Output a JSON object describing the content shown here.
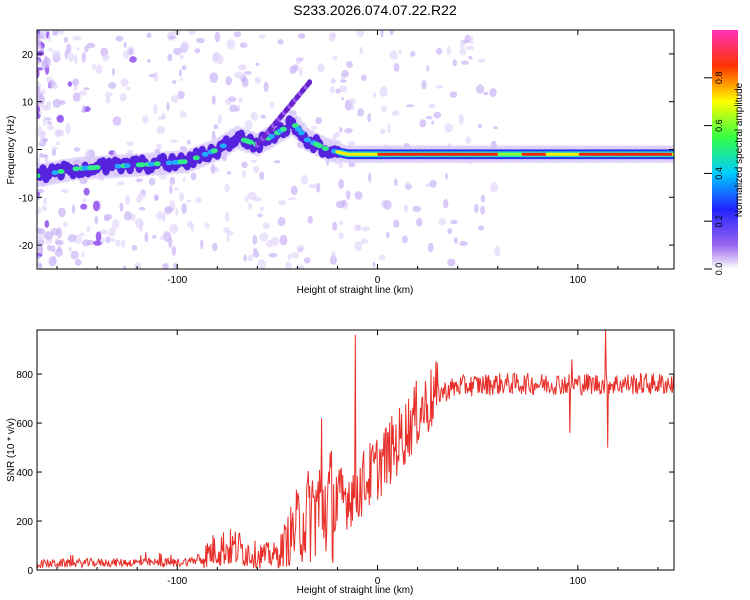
{
  "title": "S233.2026.074.07.22.R22",
  "colors": {
    "axis": "#000000",
    "line": "#e8302a",
    "background_plot": "#ffffff"
  },
  "chart_data": [
    {
      "type": "heatmap",
      "name": "spectrogram",
      "xlabel": "Height of straight line (km)",
      "ylabel": "Frequency (Hz)",
      "xlim": [
        -170,
        148
      ],
      "ylim": [
        -25,
        25
      ],
      "xticks": [
        -100,
        0,
        100
      ],
      "xtick_labels": [
        "-100",
        "0",
        "100"
      ],
      "yticks": [
        -20,
        -10,
        0,
        10,
        20
      ],
      "ytick_labels": [
        "-20",
        "-10",
        "0",
        "10",
        "20"
      ],
      "colorbar": {
        "label": "Normalized spectral amplitude",
        "ticks": [
          0.0,
          0.2,
          0.4,
          0.6,
          0.8
        ],
        "tick_labels": [
          "0.0",
          "0.2",
          "0.4",
          "0.6",
          "0.8"
        ],
        "range": [
          0,
          1
        ]
      },
      "ridge": [
        {
          "x": -170,
          "f": -5.5
        },
        {
          "x": -150,
          "f": -4
        },
        {
          "x": -130,
          "f": -3.5
        },
        {
          "x": -110,
          "f": -3
        },
        {
          "x": -95,
          "f": -2.5
        },
        {
          "x": -80,
          "f": 0
        },
        {
          "x": -70,
          "f": 2.5
        },
        {
          "x": -60,
          "f": 1
        },
        {
          "x": -50,
          "f": 3.5
        },
        {
          "x": -42,
          "f": 5.5
        },
        {
          "x": -35,
          "f": 2
        },
        {
          "x": -25,
          "f": 0
        },
        {
          "x": -15,
          "f": -1
        },
        {
          "x": 0,
          "f": -1
        },
        {
          "x": 50,
          "f": -1
        },
        {
          "x": 100,
          "f": -1
        },
        {
          "x": 148,
          "f": -1
        }
      ]
    },
    {
      "type": "line",
      "name": "snr",
      "xlabel": "Height of straight line (km)",
      "ylabel": "SNR (10 * v/v)",
      "xlim": [
        -170,
        148
      ],
      "ylim": [
        0,
        980
      ],
      "xticks": [
        -100,
        0,
        100
      ],
      "xtick_labels": [
        "-100",
        "0",
        "100"
      ],
      "yticks": [
        0,
        200,
        400,
        600,
        800
      ],
      "ytick_labels": [
        "0",
        "200",
        "400",
        "600",
        "800"
      ],
      "envelope": [
        {
          "x": -170,
          "y": 25
        },
        {
          "x": -140,
          "y": 30
        },
        {
          "x": -100,
          "y": 30
        },
        {
          "x": -90,
          "y": 40
        },
        {
          "x": -80,
          "y": 90
        },
        {
          "x": -70,
          "y": 90
        },
        {
          "x": -60,
          "y": 60
        },
        {
          "x": -50,
          "y": 60
        },
        {
          "x": -40,
          "y": 180
        },
        {
          "x": -30,
          "y": 260
        },
        {
          "x": -20,
          "y": 280
        },
        {
          "x": -10,
          "y": 330
        },
        {
          "x": 0,
          "y": 420
        },
        {
          "x": 10,
          "y": 520
        },
        {
          "x": 20,
          "y": 640
        },
        {
          "x": 30,
          "y": 720
        },
        {
          "x": 40,
          "y": 750
        },
        {
          "x": 60,
          "y": 760
        },
        {
          "x": 90,
          "y": 760
        },
        {
          "x": 110,
          "y": 760
        },
        {
          "x": 148,
          "y": 760
        }
      ],
      "spikes": [
        {
          "x": -11,
          "y": 960
        },
        {
          "x": -28,
          "y": 620
        },
        {
          "x": 97,
          "y": 860
        },
        {
          "x": 96,
          "y": 560
        },
        {
          "x": 114,
          "y": 980
        },
        {
          "x": 115,
          "y": 500
        }
      ]
    }
  ]
}
